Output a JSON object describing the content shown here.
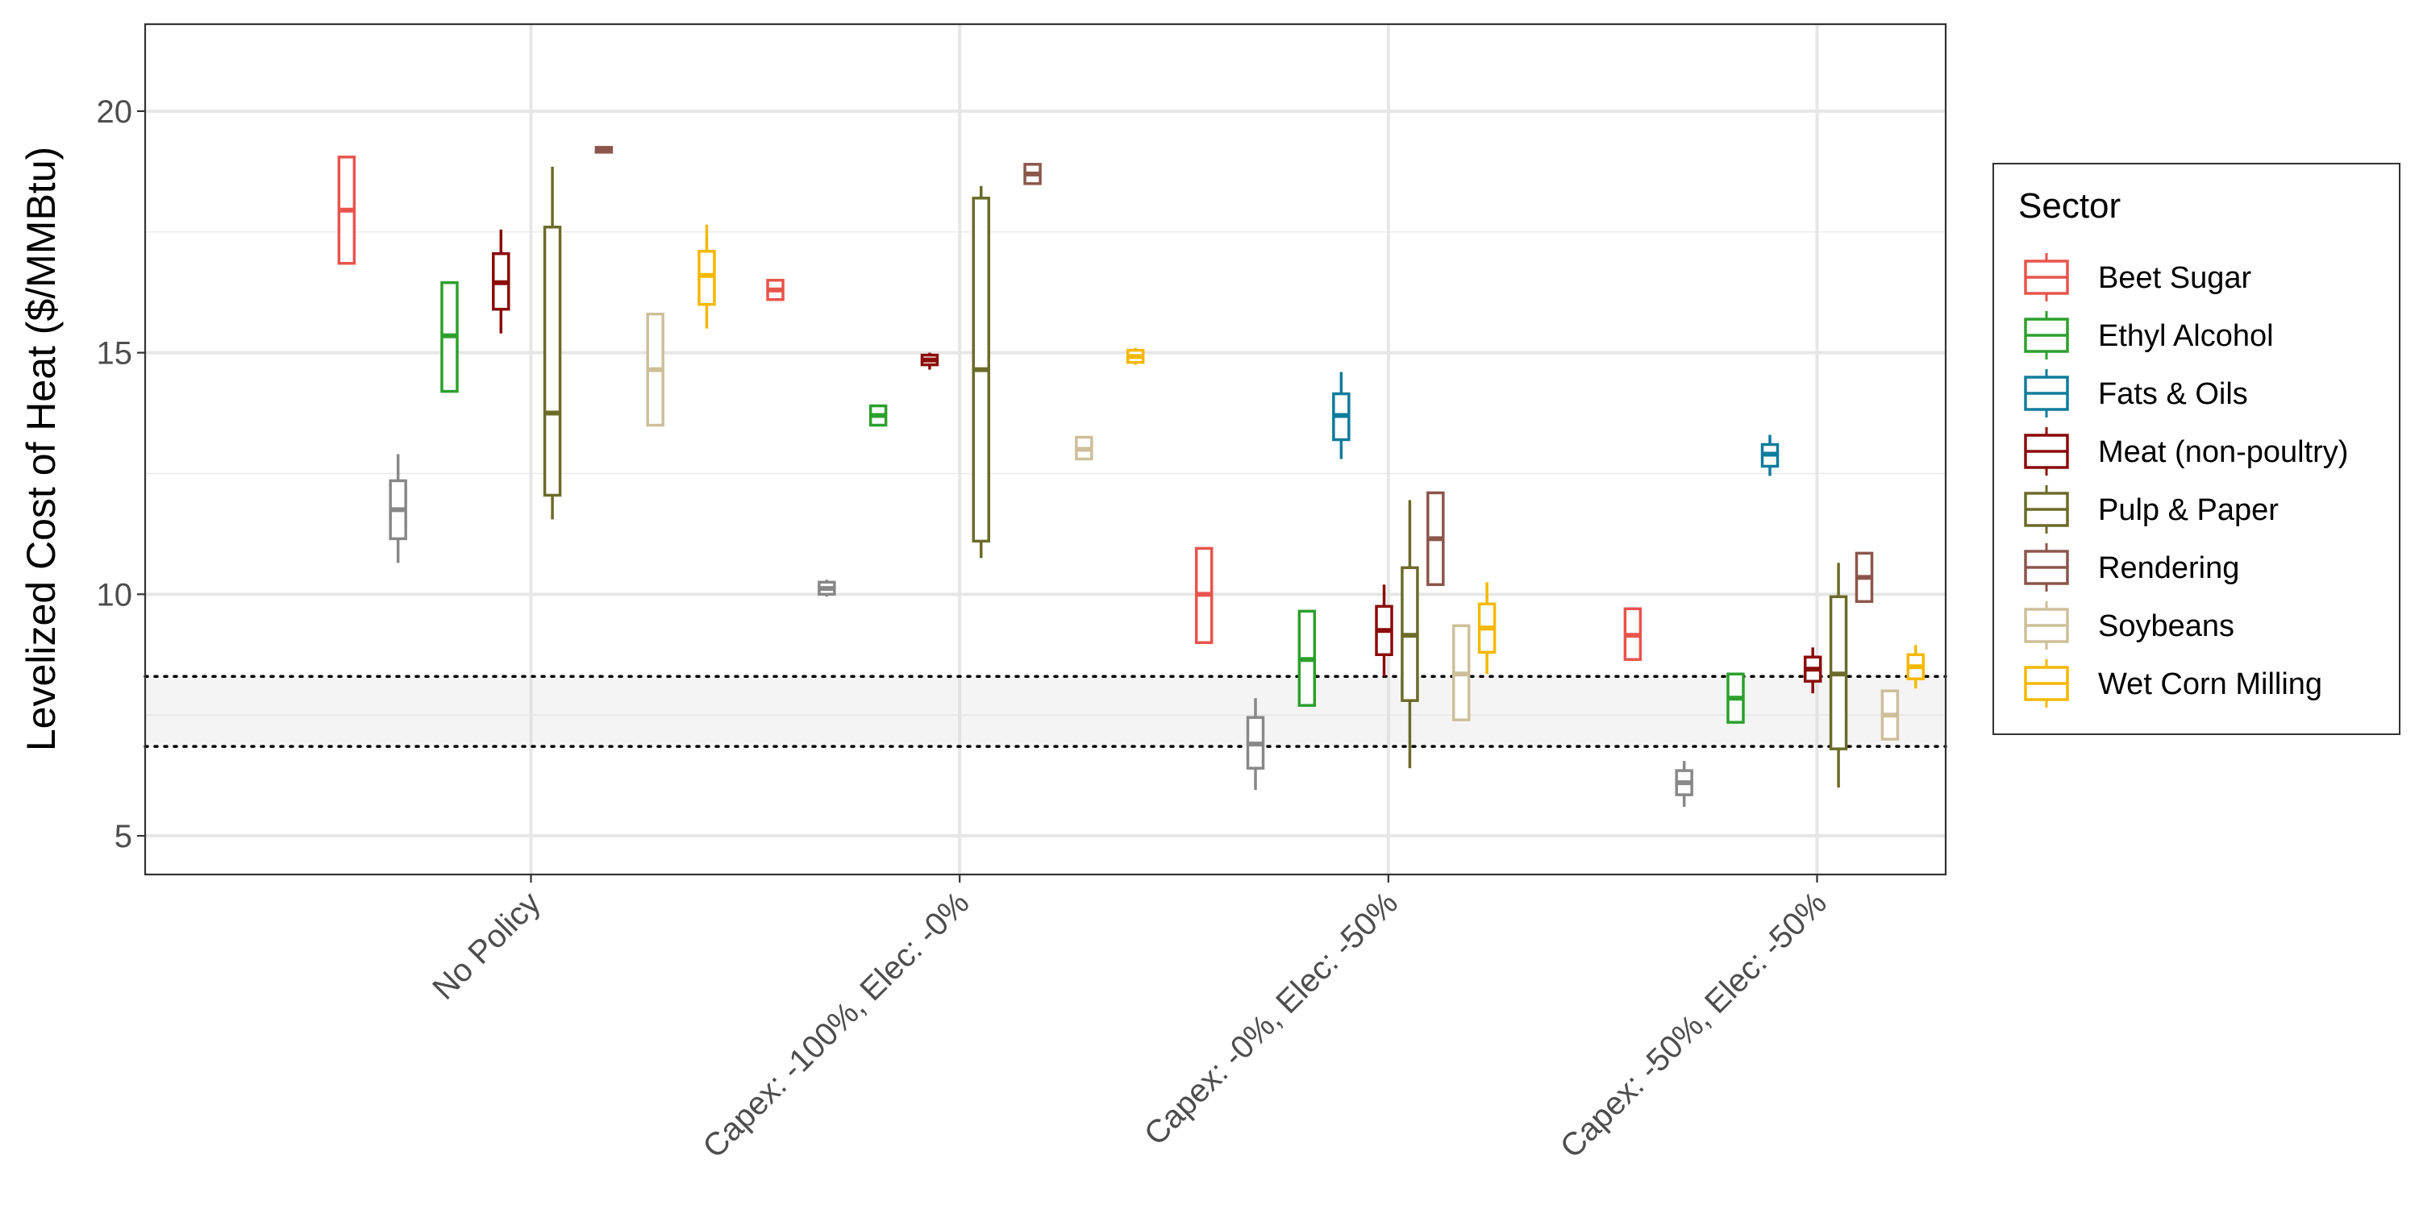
{
  "chart_data": {
    "type": "boxplot",
    "ylabel": "Levelized Cost of Heat ($/MMBtu)",
    "xlabel": "",
    "ylim": [
      4.2,
      21.8
    ],
    "yticks": [
      5,
      10,
      15,
      20
    ],
    "grid": true,
    "categories": [
      "No Policy",
      "Capex: -100%, Elec: -0%",
      "Capex: -0%, Elec: -50%",
      "Capex: -50%, Elec: -50%"
    ],
    "reference_band": {
      "lower": 6.85,
      "upper": 8.3
    },
    "legend": {
      "title": "Sector",
      "position": "right",
      "entries": [
        {
          "name": "Beet Sugar",
          "color": "#E8544C"
        },
        {
          "name": "Ethyl Alcohol",
          "color": "#2CA02C"
        },
        {
          "name": "Fats & Oils",
          "color": "#0E7C9B"
        },
        {
          "name": "Meat (non-poultry)",
          "color": "#8B0A0A"
        },
        {
          "name": "Pulp & Paper",
          "color": "#6B6B2A"
        },
        {
          "name": "Rendering",
          "color": "#8C564B"
        },
        {
          "name": "Soybeans",
          "color": "#CDBF9A"
        },
        {
          "name": "Wet Corn Milling",
          "color": "#F5B800"
        }
      ]
    },
    "unlabeled_series": [
      {
        "color": "#888888"
      }
    ],
    "series": [
      {
        "group": 0,
        "dodge": -0.43,
        "color": "#E8544C",
        "min": 16.85,
        "q1": 16.85,
        "median": 17.95,
        "q3": 19.05,
        "max": 19.05
      },
      {
        "group": 0,
        "dodge": -0.31,
        "color": "#888888",
        "min": 10.65,
        "q1": 11.15,
        "median": 11.75,
        "q3": 12.35,
        "max": 12.9
      },
      {
        "group": 0,
        "dodge": -0.19,
        "color": "#2CA02C",
        "min": 14.2,
        "q1": 14.2,
        "median": 15.35,
        "q3": 16.45,
        "max": 16.45
      },
      {
        "group": 0,
        "dodge": -0.07,
        "color": "#8B0A0A",
        "min": 15.4,
        "q1": 15.9,
        "median": 16.45,
        "q3": 17.05,
        "max": 17.55
      },
      {
        "group": 0,
        "dodge": 0.05,
        "color": "#6B6B2A",
        "min": 11.55,
        "q1": 12.05,
        "median": 13.75,
        "q3": 17.6,
        "max": 18.85
      },
      {
        "group": 0,
        "dodge": 0.17,
        "color": "#8C564B",
        "min": 19.15,
        "q1": 19.15,
        "median": 19.2,
        "q3": 19.25,
        "max": 19.25
      },
      {
        "group": 0,
        "dodge": 0.29,
        "color": "#CDBF9A",
        "min": 13.5,
        "q1": 13.5,
        "median": 14.65,
        "q3": 15.8,
        "max": 15.8
      },
      {
        "group": 0,
        "dodge": 0.41,
        "color": "#F5B800",
        "min": 15.5,
        "q1": 16.0,
        "median": 16.6,
        "q3": 17.1,
        "max": 17.65
      },
      {
        "group": 1,
        "dodge": -0.43,
        "color": "#E8544C",
        "min": 16.1,
        "q1": 16.1,
        "median": 16.3,
        "q3": 16.5,
        "max": 16.5
      },
      {
        "group": 1,
        "dodge": -0.31,
        "color": "#888888",
        "min": 9.95,
        "q1": 10.0,
        "median": 10.12,
        "q3": 10.25,
        "max": 10.3
      },
      {
        "group": 1,
        "dodge": -0.19,
        "color": "#2CA02C",
        "min": 13.5,
        "q1": 13.5,
        "median": 13.7,
        "q3": 13.9,
        "max": 13.9
      },
      {
        "group": 1,
        "dodge": -0.07,
        "color": "#8B0A0A",
        "min": 14.65,
        "q1": 14.75,
        "median": 14.85,
        "q3": 14.95,
        "max": 15.0
      },
      {
        "group": 1,
        "dodge": 0.05,
        "color": "#6B6B2A",
        "min": 10.75,
        "q1": 11.1,
        "median": 14.65,
        "q3": 18.2,
        "max": 18.45
      },
      {
        "group": 1,
        "dodge": 0.17,
        "color": "#8C564B",
        "min": 18.5,
        "q1": 18.5,
        "median": 18.7,
        "q3": 18.9,
        "max": 18.9
      },
      {
        "group": 1,
        "dodge": 0.29,
        "color": "#CDBF9A",
        "min": 12.8,
        "q1": 12.8,
        "median": 13.0,
        "q3": 13.25,
        "max": 13.25
      },
      {
        "group": 1,
        "dodge": 0.41,
        "color": "#F5B800",
        "min": 14.75,
        "q1": 14.8,
        "median": 14.92,
        "q3": 15.05,
        "max": 15.1
      },
      {
        "group": 2,
        "dodge": -0.43,
        "color": "#E8544C",
        "min": 9.0,
        "q1": 9.0,
        "median": 10.0,
        "q3": 10.95,
        "max": 10.95
      },
      {
        "group": 2,
        "dodge": -0.31,
        "color": "#888888",
        "min": 5.95,
        "q1": 6.4,
        "median": 6.9,
        "q3": 7.45,
        "max": 7.85
      },
      {
        "group": 2,
        "dodge": -0.19,
        "color": "#2CA02C",
        "min": 7.7,
        "q1": 7.7,
        "median": 8.65,
        "q3": 9.65,
        "max": 9.65
      },
      {
        "group": 2,
        "dodge": -0.11,
        "color": "#0E7C9B",
        "min": 12.8,
        "q1": 13.2,
        "median": 13.7,
        "q3": 14.15,
        "max": 14.6
      },
      {
        "group": 2,
        "dodge": -0.01,
        "color": "#8B0A0A",
        "min": 8.3,
        "q1": 8.75,
        "median": 9.25,
        "q3": 9.75,
        "max": 10.2
      },
      {
        "group": 2,
        "dodge": 0.05,
        "color": "#6B6B2A",
        "min": 6.4,
        "q1": 7.8,
        "median": 9.15,
        "q3": 10.55,
        "max": 11.95
      },
      {
        "group": 2,
        "dodge": 0.11,
        "color": "#8C564B",
        "min": 10.2,
        "q1": 10.2,
        "median": 11.15,
        "q3": 12.1,
        "max": 12.1
      },
      {
        "group": 2,
        "dodge": 0.17,
        "color": "#CDBF9A",
        "min": 7.4,
        "q1": 7.4,
        "median": 8.35,
        "q3": 9.35,
        "max": 9.35
      },
      {
        "group": 2,
        "dodge": 0.23,
        "color": "#F5B800",
        "min": 8.35,
        "q1": 8.8,
        "median": 9.3,
        "q3": 9.8,
        "max": 10.25
      },
      {
        "group": 3,
        "dodge": -0.43,
        "color": "#E8544C",
        "min": 8.65,
        "q1": 8.65,
        "median": 9.15,
        "q3": 9.7,
        "max": 9.7
      },
      {
        "group": 3,
        "dodge": -0.31,
        "color": "#888888",
        "min": 5.6,
        "q1": 5.85,
        "median": 6.1,
        "q3": 6.35,
        "max": 6.55
      },
      {
        "group": 3,
        "dodge": -0.19,
        "color": "#2CA02C",
        "min": 7.35,
        "q1": 7.35,
        "median": 7.85,
        "q3": 8.35,
        "max": 8.35
      },
      {
        "group": 3,
        "dodge": -0.11,
        "color": "#0E7C9B",
        "min": 12.45,
        "q1": 12.65,
        "median": 12.9,
        "q3": 13.1,
        "max": 13.3
      },
      {
        "group": 3,
        "dodge": -0.01,
        "color": "#8B0A0A",
        "min": 7.95,
        "q1": 8.2,
        "median": 8.45,
        "q3": 8.7,
        "max": 8.9
      },
      {
        "group": 3,
        "dodge": 0.05,
        "color": "#6B6B2A",
        "min": 6.0,
        "q1": 6.8,
        "median": 8.35,
        "q3": 9.95,
        "max": 10.65
      },
      {
        "group": 3,
        "dodge": 0.11,
        "color": "#8C564B",
        "min": 9.85,
        "q1": 9.85,
        "median": 10.35,
        "q3": 10.85,
        "max": 10.85
      },
      {
        "group": 3,
        "dodge": 0.17,
        "color": "#CDBF9A",
        "min": 7.0,
        "q1": 7.0,
        "median": 7.5,
        "q3": 8.0,
        "max": 8.0
      },
      {
        "group": 3,
        "dodge": 0.23,
        "color": "#F5B800",
        "min": 8.05,
        "q1": 8.25,
        "median": 8.5,
        "q3": 8.75,
        "max": 8.95
      }
    ]
  }
}
